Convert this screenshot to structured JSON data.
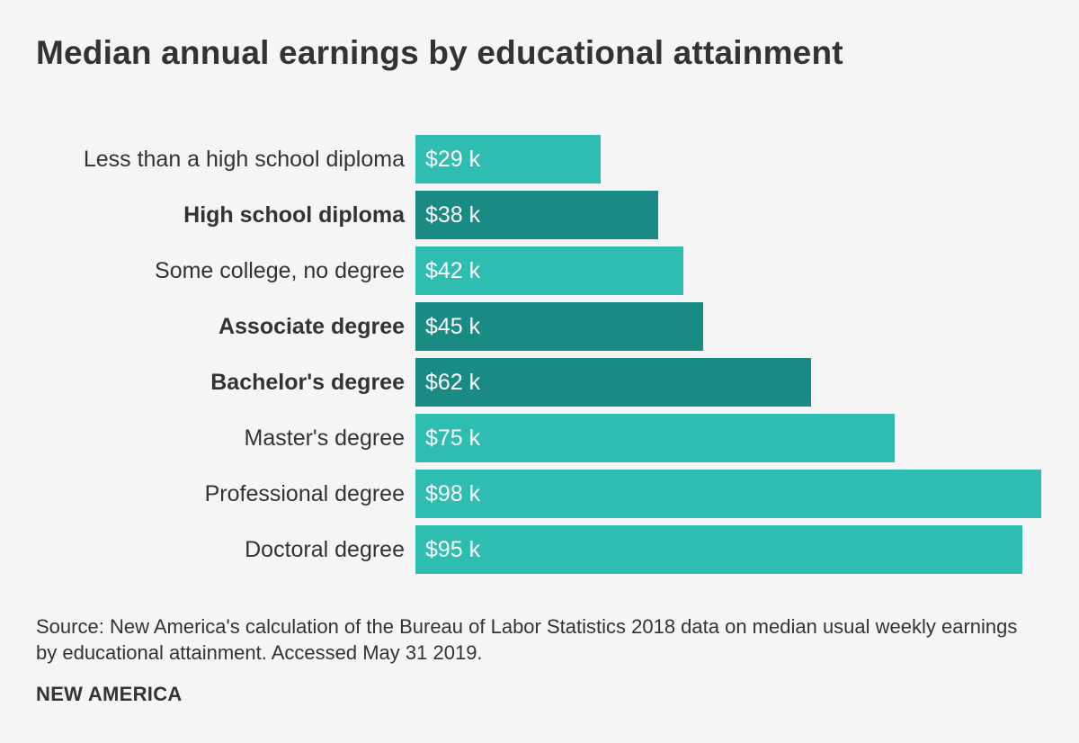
{
  "title": "Median annual earnings by educational attainment",
  "chart_data": {
    "type": "bar",
    "orientation": "horizontal",
    "categories": [
      "Less than a high school diploma",
      "High school diploma",
      "Some college, no degree",
      "Associate degree",
      "Bachelor's degree",
      "Master's degree",
      "Professional degree",
      "Doctoral degree"
    ],
    "values": [
      29,
      38,
      42,
      45,
      62,
      75,
      98,
      95
    ],
    "value_labels": [
      "$29 k",
      "$38 k",
      "$42 k",
      "$45 k",
      "$62 k",
      "$75 k",
      "$98 k",
      "$95 k"
    ],
    "highlighted": [
      false,
      true,
      false,
      true,
      true,
      false,
      false,
      false
    ],
    "colors": {
      "default_bar": "#2fbdb2",
      "highlight_bar": "#1a8a84",
      "value_text": "#ffffff",
      "label_text": "#333333"
    },
    "xlim": [
      0,
      98
    ],
    "grid": false,
    "legend": "none"
  },
  "source": {
    "prefix": "Source:",
    "text": "New America's calculation of the Bureau of Labor Statistics 2018 data on median usual weekly earnings by educational attainment. Accessed May 31 2019."
  },
  "footer": {
    "brand": "NEW AMERICA"
  }
}
